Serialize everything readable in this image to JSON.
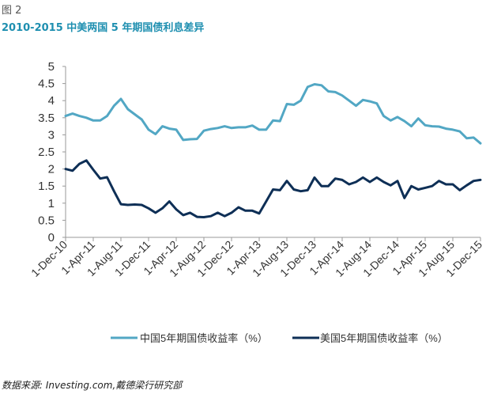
{
  "figure_label": "图 2",
  "title": "2010-2015 中美两国 5 年期国债利息差异",
  "source": "数据来源: Investing.com,戴德梁行研究部",
  "colors": {
    "china": "#52a7c4",
    "us": "#0e2f56",
    "title": "#1e8fb0"
  },
  "chart_data": {
    "type": "line",
    "title": "2010-2015 中美两国 5 年期国债利息差异",
    "xlabel": "",
    "ylabel": "",
    "ylim": [
      0,
      5
    ],
    "yticks": [
      0,
      0.5,
      1,
      1.5,
      2,
      2.5,
      3,
      3.5,
      4,
      4.5,
      5
    ],
    "ytick_labels": [
      "0",
      "0.5",
      "1",
      "1.5",
      "2",
      "2.5",
      "3",
      "3.5",
      "4",
      "4.5",
      "5"
    ],
    "x_ticks": [
      "1-Dec-10",
      "1-Apr-11",
      "1-Aug-11",
      "1-Dec-11",
      "1-Apr-12",
      "1-Aug-12",
      "1-Dec-12",
      "1-Apr-13",
      "1-Aug-13",
      "1-Dec-13",
      "1-Apr-14",
      "1-Aug-14",
      "1-Dec-14",
      "1-Apr-15",
      "1-Aug-15",
      "1-Dec-15"
    ],
    "x": [
      "2010-12",
      "2011-01",
      "2011-02",
      "2011-03",
      "2011-04",
      "2011-05",
      "2011-06",
      "2011-07",
      "2011-08",
      "2011-09",
      "2011-10",
      "2011-11",
      "2011-12",
      "2012-01",
      "2012-02",
      "2012-03",
      "2012-04",
      "2012-05",
      "2012-06",
      "2012-07",
      "2012-08",
      "2012-09",
      "2012-10",
      "2012-11",
      "2012-12",
      "2013-01",
      "2013-02",
      "2013-03",
      "2013-04",
      "2013-05",
      "2013-06",
      "2013-07",
      "2013-08",
      "2013-09",
      "2013-10",
      "2013-11",
      "2013-12",
      "2014-01",
      "2014-02",
      "2014-03",
      "2014-04",
      "2014-05",
      "2014-06",
      "2014-07",
      "2014-08",
      "2014-09",
      "2014-10",
      "2014-11",
      "2014-12",
      "2015-01",
      "2015-02",
      "2015-03",
      "2015-04",
      "2015-05",
      "2015-06",
      "2015-07",
      "2015-08",
      "2015-09",
      "2015-10",
      "2015-11",
      "2015-12"
    ],
    "series": [
      {
        "name": "中国5年期国债收益率（%）",
        "color": "#52a7c4",
        "values": [
          3.55,
          3.62,
          3.55,
          3.5,
          3.42,
          3.42,
          3.55,
          3.85,
          4.05,
          3.75,
          3.6,
          3.45,
          3.15,
          3.02,
          3.25,
          3.18,
          3.15,
          2.85,
          2.87,
          2.88,
          3.12,
          3.17,
          3.2,
          3.25,
          3.2,
          3.22,
          3.22,
          3.27,
          3.15,
          3.15,
          3.42,
          3.4,
          3.9,
          3.88,
          4.0,
          4.4,
          4.48,
          4.45,
          4.27,
          4.25,
          4.15,
          4.0,
          3.85,
          4.02,
          3.98,
          3.92,
          3.55,
          3.42,
          3.52,
          3.4,
          3.25,
          3.48,
          3.28,
          3.25,
          3.24,
          3.18,
          3.15,
          3.1,
          2.9,
          2.92,
          2.75
        ]
      },
      {
        "name": "美国5年期国债收益率（%）",
        "color": "#0e2f56",
        "values": [
          2.0,
          1.95,
          2.15,
          2.25,
          1.98,
          1.72,
          1.76,
          1.35,
          0.97,
          0.95,
          0.96,
          0.95,
          0.85,
          0.72,
          0.85,
          1.05,
          0.82,
          0.65,
          0.72,
          0.6,
          0.59,
          0.62,
          0.72,
          0.62,
          0.72,
          0.88,
          0.78,
          0.78,
          0.7,
          1.05,
          1.4,
          1.38,
          1.65,
          1.4,
          1.35,
          1.38,
          1.75,
          1.5,
          1.5,
          1.72,
          1.68,
          1.55,
          1.62,
          1.75,
          1.62,
          1.75,
          1.62,
          1.52,
          1.65,
          1.15,
          1.5,
          1.4,
          1.45,
          1.5,
          1.65,
          1.55,
          1.55,
          1.38,
          1.52,
          1.65,
          1.68
        ]
      }
    ],
    "legend_position": "bottom",
    "grid": false
  }
}
